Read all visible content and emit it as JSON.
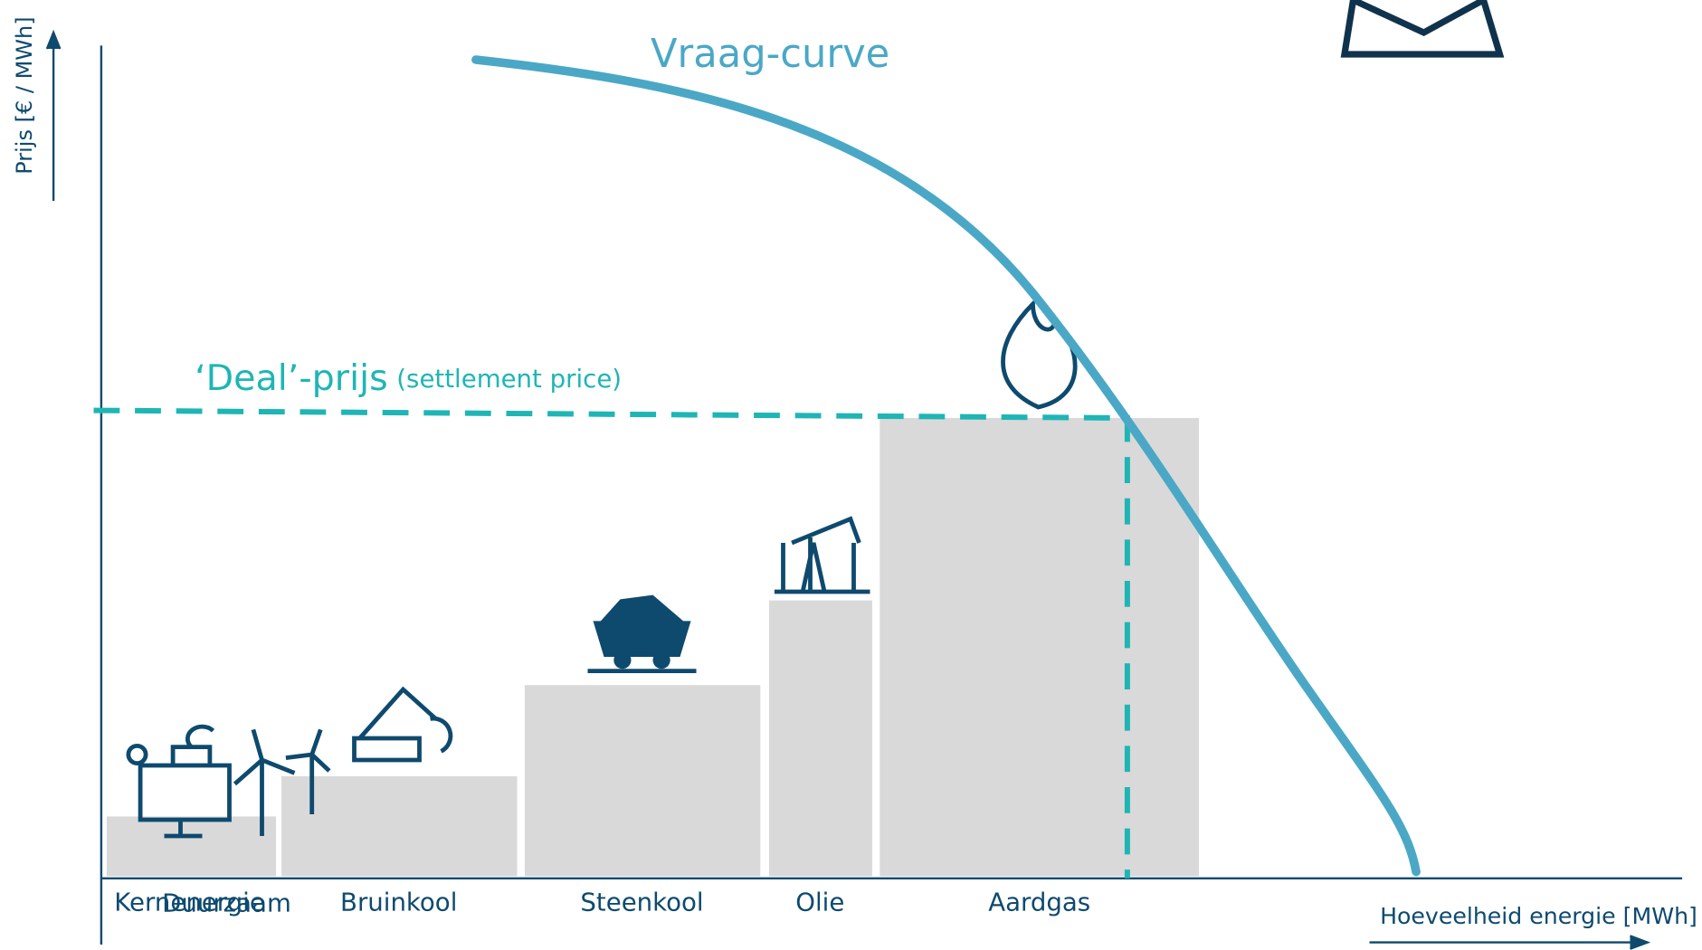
{
  "y_axis_label": "Prijs [€ / MWh]",
  "x_axis_label": "Hoeveelheid energie [MWh]",
  "demand_curve_label": "Vraag-curve",
  "deal_price": {
    "label": "‘Deal’-prijs",
    "note": "(settlement price)"
  },
  "sources": [
    "Kernenergie",
    "Duurzaam",
    "Bruinkool",
    "Steenkool",
    "Olie",
    "Aardgas"
  ]
}
